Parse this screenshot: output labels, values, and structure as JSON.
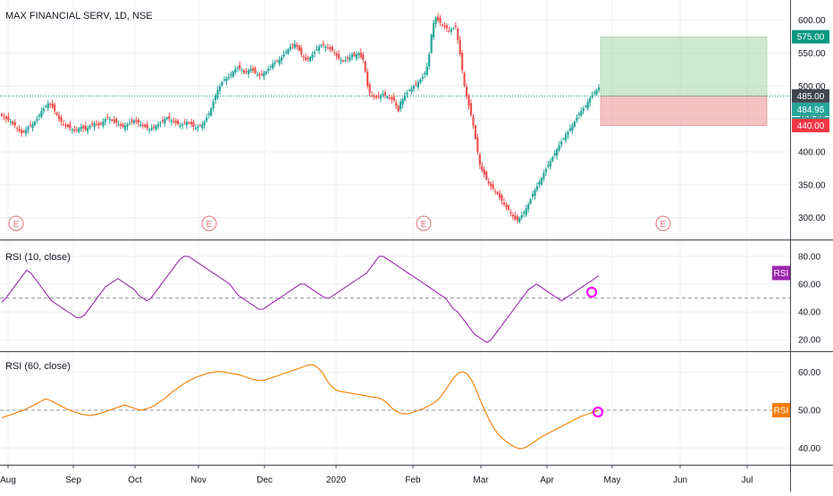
{
  "header": {
    "title": "MAX FINANCIAL SERV, 1D, NSE"
  },
  "colors": {
    "up": "#26a69a",
    "down": "#ef5350",
    "rsi_fast": "#9c27b0",
    "rsi_slow": "#f57c00",
    "grid": "#eef0f3",
    "divider": "#434651",
    "target": "#a5d6a7",
    "stop": "#ef9a9a",
    "earnings": "#e57373",
    "mark": "#ff00ff",
    "current": "#089981"
  },
  "chart_data": [
    {
      "pane": "price",
      "type": "candlestick",
      "title": "MAX FINANCIAL SERV, 1D, NSE",
      "x_ticks": [
        "Aug",
        "Sep",
        "Oct",
        "Nov",
        "Dec",
        "2020",
        "Feb",
        "Mar",
        "Apr",
        "May",
        "Jun",
        "Jul"
      ],
      "y_ticks": [
        "300.00",
        "350.00",
        "400.00",
        "450.00",
        "500.00",
        "550.00",
        "600.00"
      ],
      "ylim": [
        275,
        620
      ],
      "closes": [
        455,
        452,
        450,
        448,
        446,
        442,
        440,
        436,
        432,
        428,
        430,
        434,
        438,
        440,
        442,
        446,
        450,
        456,
        462,
        466,
        470,
        474,
        472,
        468,
        462,
        456,
        450,
        446,
        442,
        440,
        438,
        436,
        434,
        432,
        434,
        436,
        438,
        436,
        434,
        436,
        440,
        442,
        444,
        442,
        440,
        442,
        446,
        450,
        452,
        450,
        448,
        446,
        444,
        442,
        440,
        438,
        440,
        442,
        444,
        446,
        448,
        446,
        444,
        442,
        440,
        438,
        436,
        434,
        436,
        438,
        440,
        442,
        444,
        446,
        450,
        452,
        450,
        448,
        446,
        444,
        442,
        440,
        442,
        444,
        446,
        444,
        442,
        438,
        436,
        438,
        440,
        442,
        446,
        452,
        458,
        466,
        476,
        486,
        494,
        500,
        506,
        510,
        512,
        514,
        518,
        522,
        526,
        528,
        526,
        524,
        520,
        522,
        524,
        526,
        524,
        520,
        518,
        516,
        518,
        520,
        522,
        526,
        530,
        534,
        536,
        538,
        540,
        544,
        548,
        552,
        556,
        560,
        562,
        564,
        560,
        554,
        548,
        544,
        540,
        542,
        544,
        548,
        552,
        556,
        560,
        562,
        562,
        560,
        558,
        556,
        554,
        550,
        546,
        542,
        540,
        538,
        540,
        542,
        544,
        548,
        546,
        548,
        550,
        544,
        540,
        522,
        500,
        490,
        486,
        484,
        482,
        484,
        486,
        488,
        486,
        484,
        482,
        480,
        478,
        470,
        462,
        476,
        480,
        486,
        490,
        494,
        496,
        500,
        502,
        506,
        510,
        514,
        520,
        530,
        548,
        578,
        596,
        604,
        600,
        596,
        592,
        590,
        588,
        584,
        586,
        588,
        590,
        570,
        548,
        524,
        500,
        484,
        470,
        456,
        440,
        420,
        400,
        380,
        372,
        366,
        358,
        352,
        348,
        344,
        340,
        336,
        330,
        326,
        320,
        316,
        312,
        306,
        302,
        298,
        296,
        300,
        304,
        308,
        314,
        320,
        328,
        336,
        342,
        348,
        354,
        360,
        368,
        374,
        380,
        386,
        392,
        398,
        404,
        410,
        416,
        420,
        426,
        430,
        436,
        440,
        446,
        452,
        458,
        462,
        466,
        470,
        476,
        482,
        486,
        490,
        494,
        498
      ]
    },
    {
      "pane": "rsi_fast",
      "type": "line",
      "title": "RSI (10, close)",
      "x_ticks": [
        "Aug",
        "Sep",
        "Oct",
        "Nov",
        "Dec",
        "2020",
        "Feb",
        "Mar",
        "Apr",
        "May",
        "Jun",
        "Jul"
      ],
      "y_ticks": [
        "20.00",
        "40.00",
        "60.00",
        "80.00"
      ],
      "ylim": [
        15,
        85
      ],
      "reference_line": 50,
      "series": [
        {
          "name": "RSI",
          "values": [
            47,
            50,
            54,
            58,
            62,
            66,
            70,
            68,
            64,
            60,
            56,
            52,
            48,
            46,
            44,
            42,
            40,
            38,
            36,
            36,
            38,
            42,
            46,
            50,
            54,
            58,
            60,
            62,
            64,
            62,
            60,
            58,
            56,
            52,
            50,
            48,
            50,
            54,
            58,
            62,
            66,
            70,
            74,
            78,
            80,
            80,
            78,
            76,
            74,
            72,
            70,
            68,
            66,
            64,
            62,
            60,
            56,
            52,
            50,
            48,
            46,
            44,
            42,
            42,
            44,
            46,
            48,
            50,
            52,
            54,
            56,
            58,
            60,
            60,
            58,
            56,
            54,
            52,
            50,
            50,
            52,
            54,
            56,
            58,
            60,
            62,
            64,
            66,
            68,
            72,
            76,
            80,
            80,
            78,
            76,
            74,
            72,
            70,
            68,
            66,
            64,
            62,
            60,
            58,
            56,
            54,
            52,
            50,
            46,
            42,
            40,
            36,
            32,
            28,
            24,
            22,
            20,
            18,
            20,
            24,
            28,
            32,
            36,
            40,
            44,
            48,
            52,
            56,
            58,
            60,
            58,
            56,
            54,
            52,
            50,
            48,
            50,
            52,
            54,
            56,
            58,
            60,
            62,
            64,
            66
          ]
        }
      ]
    },
    {
      "pane": "rsi_slow",
      "type": "line",
      "title": "RSI (60, close)",
      "x_ticks": [
        "Aug",
        "Sep",
        "Oct",
        "Nov",
        "Dec",
        "2020",
        "Feb",
        "Mar",
        "Apr",
        "May",
        "Jun",
        "Jul"
      ],
      "y_ticks": [
        "40.00",
        "50.00",
        "60.00"
      ],
      "ylim": [
        37,
        63
      ],
      "reference_line": 50,
      "series": [
        {
          "name": "RSI",
          "values": [
            48,
            48.4,
            48.8,
            49.2,
            49.6,
            50,
            50.6,
            51.2,
            51.8,
            52.4,
            53,
            52.6,
            52,
            51.4,
            50.8,
            50.2,
            49.8,
            49.4,
            49,
            48.8,
            48.6,
            48.8,
            49,
            49.4,
            49.8,
            50.2,
            50.6,
            51,
            51.4,
            51,
            50.6,
            50.2,
            50,
            50.4,
            50.8,
            51.4,
            52.2,
            53,
            54,
            55,
            55.8,
            56.6,
            57.4,
            58,
            58.6,
            59,
            59.4,
            59.8,
            60,
            60.2,
            60.2,
            60,
            59.8,
            59.6,
            59.4,
            59,
            58.6,
            58.2,
            58,
            57.8,
            58,
            58.4,
            58.8,
            59.2,
            59.6,
            60,
            60.4,
            60.8,
            61.2,
            61.6,
            62,
            62,
            61.2,
            60,
            58,
            56.4,
            55.4,
            55,
            54.8,
            54.6,
            54.4,
            54.2,
            54,
            53.8,
            53.6,
            53.4,
            53.2,
            52.6,
            51.6,
            50.4,
            49.6,
            49.2,
            49,
            49.2,
            49.6,
            50,
            50.4,
            51,
            51.6,
            52.4,
            53.6,
            55.2,
            57,
            58.6,
            59.8,
            60.2,
            59.6,
            58,
            55.6,
            52.6,
            50,
            47.6,
            45.4,
            43.8,
            42.6,
            41.6,
            40.8,
            40.2,
            39.8,
            40,
            40.6,
            41.4,
            42.2,
            43,
            43.6,
            44.2,
            44.8,
            45.4,
            46,
            46.6,
            47.2,
            47.8,
            48.4,
            48.8,
            49.2,
            49.6,
            50
          ]
        }
      ]
    }
  ],
  "price_tags": [
    {
      "text": "575.00"
    },
    {
      "text": "485.00"
    },
    {
      "text": "484.95"
    },
    {
      "text": "03:43:21"
    },
    {
      "text": "440.00"
    }
  ],
  "rsi_badges": [
    {
      "text": "RSI"
    },
    {
      "text": "RSI"
    }
  ],
  "position": {
    "target": "575.00",
    "entry": "485.00",
    "stop": "440.00"
  },
  "earnings_markers": [
    {
      "letter": "E"
    },
    {
      "letter": "E"
    },
    {
      "letter": "E"
    },
    {
      "letter": "E"
    }
  ]
}
